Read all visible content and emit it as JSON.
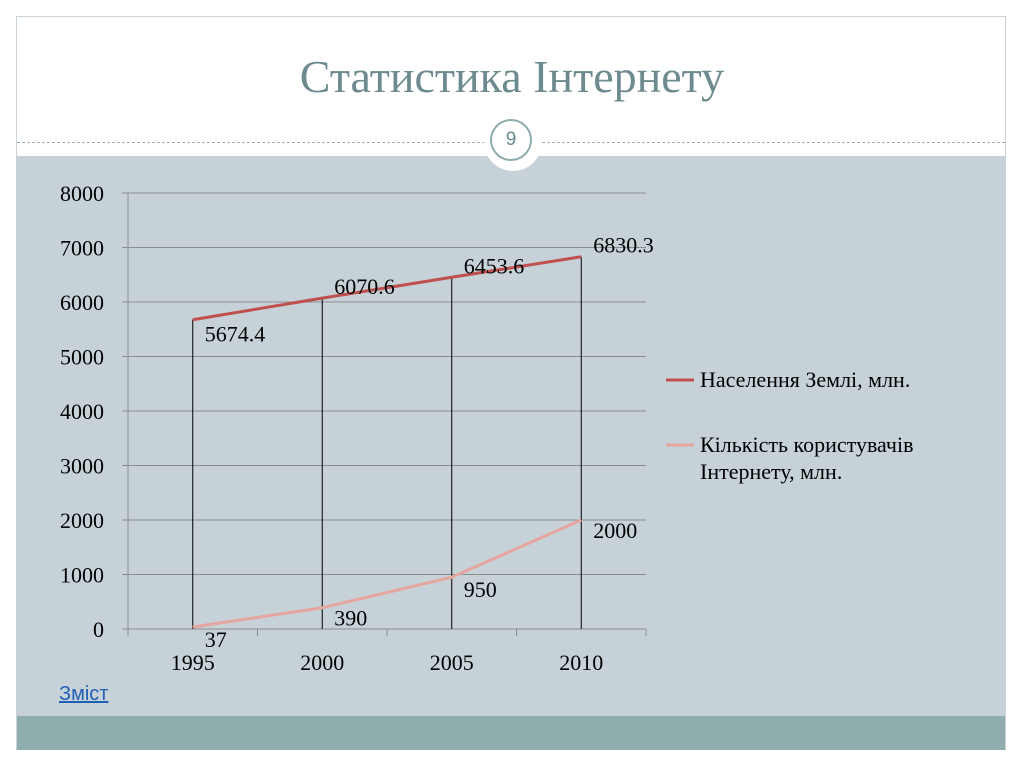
{
  "slide": {
    "title": "Статистика Інтернету",
    "page_number": "9",
    "link_label": "Зміст"
  },
  "colors": {
    "series1": "#c0504d",
    "series2": "#e6a59e",
    "grid": "#8c8c8c",
    "title": "#6d8a8e",
    "link": "#1f5fb6"
  },
  "chart_data": {
    "type": "line",
    "categories": [
      "1995",
      "2000",
      "2005",
      "2010"
    ],
    "ylim": [
      0,
      8000
    ],
    "yticks": [
      "0",
      "1000",
      "2000",
      "3000",
      "4000",
      "5000",
      "6000",
      "7000",
      "8000"
    ],
    "grid": true,
    "drop_lines": true,
    "legend_position": "right",
    "series": [
      {
        "name": "Населення Землі, млн.",
        "values": [
          5674.4,
          6070.6,
          6453.6,
          6830.3
        ],
        "labels": [
          "5674.4",
          "6070.6",
          "6453.6",
          "6830.3"
        ]
      },
      {
        "name": "Кількість користувачів Інтернету, млн.",
        "values": [
          37,
          390,
          950,
          2000
        ],
        "labels": [
          "37",
          "390",
          "950",
          "2000"
        ]
      }
    ]
  }
}
